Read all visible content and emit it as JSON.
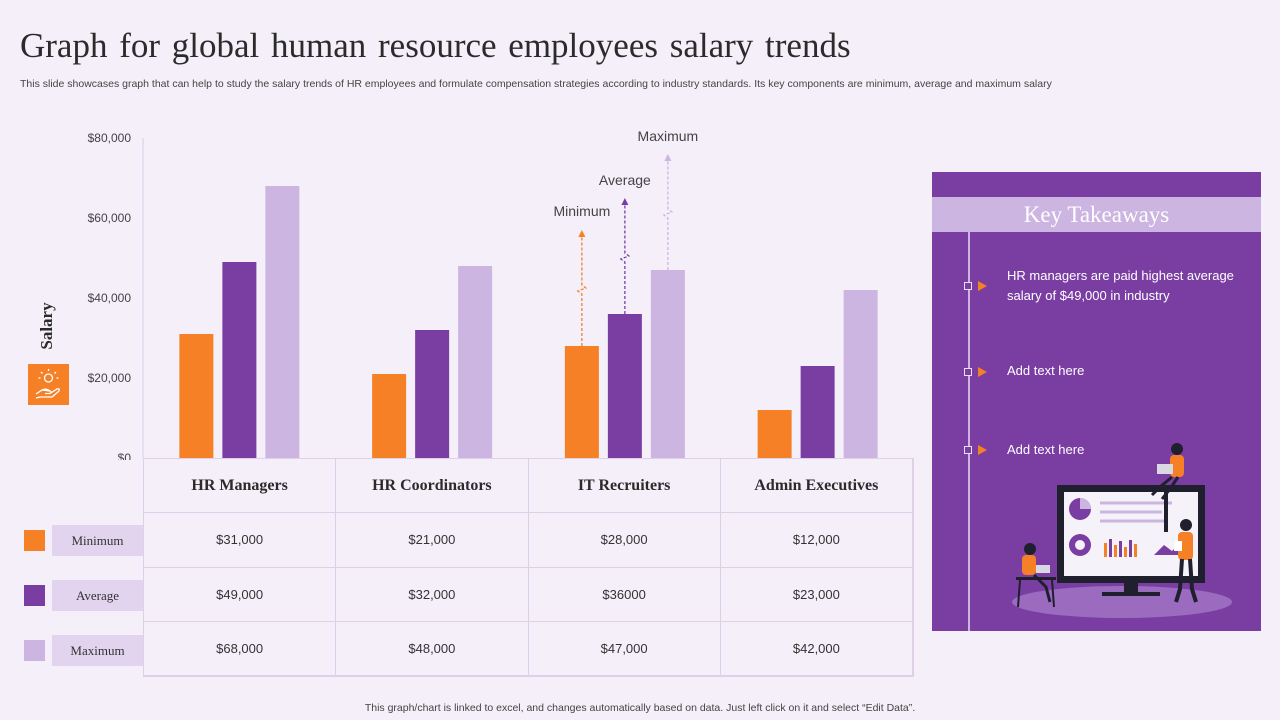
{
  "title": "Graph for global human resource employees salary trends",
  "subtitle": "This slide showcases graph that can help to study the salary trends of HR employees and formulate compensation strategies according to industry standards. Its key components are minimum,  average and maximum salary",
  "chart_data": {
    "type": "bar",
    "title": "Graph for global human resource employees salary trends",
    "xlabel": "",
    "ylabel": "Salary",
    "ylim": [
      0,
      80000
    ],
    "yticks": [
      0,
      20000,
      40000,
      60000,
      80000
    ],
    "ytick_labels": [
      "$0",
      "$20,000",
      "$40,000",
      "$60,000",
      "$80,000"
    ],
    "categories": [
      "HR Managers",
      "HR Coordinators",
      "IT Recruiters",
      "Admin  Executives"
    ],
    "series": [
      {
        "name": "Minimum",
        "color": "#f58026",
        "values": [
          31000,
          21000,
          28000,
          12000
        ],
        "labels": [
          "$31,000",
          "$21,000",
          "$28,000",
          "$12,000"
        ]
      },
      {
        "name": "Average",
        "color": "#7a3ea3",
        "values": [
          49000,
          32000,
          36000,
          23000
        ],
        "labels": [
          "$49,000",
          "$32,000",
          "$36000",
          "$23,000"
        ]
      },
      {
        "name": "Maximum",
        "color": "#cdb5e2",
        "values": [
          68000,
          48000,
          47000,
          42000
        ],
        "labels": [
          "$68,000",
          "$48,000",
          "$47,000",
          "$42,000"
        ]
      }
    ],
    "annotations": [
      "Minimum",
      "Average",
      "Maximum"
    ],
    "grid": false,
    "legend": "bottom-left"
  },
  "takeaways": {
    "title": "Key Takeaways",
    "items": [
      "HR managers are paid highest average salary of $49,000 in industry",
      "Add text here",
      "Add text here"
    ]
  },
  "icons": {
    "salary": "hand-coins-icon",
    "illustration": "people-analytics-illustration"
  },
  "footer": "This graph/chart is linked to excel, and changes automatically based on data. Just left click on it and select “Edit Data”."
}
